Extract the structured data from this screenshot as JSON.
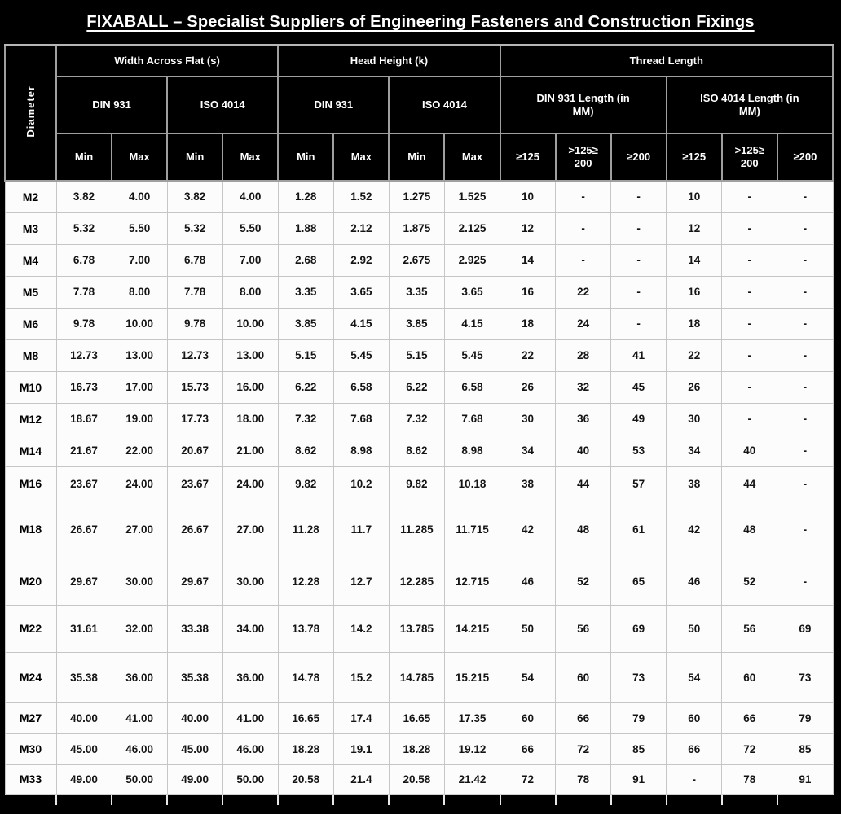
{
  "page": {
    "background_color": "#000000",
    "header_bg_color": "#000000",
    "header_text_color": "#ffffff",
    "cell_bg_color": "#fcfcfc",
    "cell_text_color": "#141414"
  },
  "title": "FIXABALL – Specialist Suppliers of Engineering Fasteners and Construction  Fixings",
  "table": {
    "diameter_label": "Diameter",
    "groups": [
      {
        "label": "Width Across Flat (s)"
      },
      {
        "label": "Head Height (k)"
      },
      {
        "label": "Thread Length"
      }
    ],
    "standards": [
      {
        "label": "DIN 931"
      },
      {
        "label": "ISO 4014"
      },
      {
        "label": "DIN 931"
      },
      {
        "label": "ISO 4014"
      },
      {
        "label": "DIN 931 Length (in\nMM)"
      },
      {
        "label": "ISO 4014 Length (in\nMM)"
      }
    ],
    "minmax_headers": [
      "Min",
      "Max",
      "Min",
      "Max",
      "Min",
      "Max",
      "Min",
      "Max"
    ],
    "length_headers": [
      "≥125",
      ">125≥\n200",
      "≥200",
      "≥125",
      ">125≥\n200",
      "≥200"
    ],
    "rows": [
      {
        "diameter": "M2",
        "values": [
          "3.82",
          "4.00",
          "3.82",
          "4.00",
          "1.28",
          "1.52",
          "1.275",
          "1.525",
          "10",
          "-",
          "-",
          "10",
          "-",
          "-"
        ]
      },
      {
        "diameter": "M3",
        "values": [
          "5.32",
          "5.50",
          "5.32",
          "5.50",
          "1.88",
          "2.12",
          "1.875",
          "2.125",
          "12",
          "-",
          "-",
          "12",
          "-",
          "-"
        ]
      },
      {
        "diameter": "M4",
        "values": [
          "6.78",
          "7.00",
          "6.78",
          "7.00",
          "2.68",
          "2.92",
          "2.675",
          "2.925",
          "14",
          "-",
          "-",
          "14",
          "-",
          "-"
        ]
      },
      {
        "diameter": "M5",
        "values": [
          "7.78",
          "8.00",
          "7.78",
          "8.00",
          "3.35",
          "3.65",
          "3.35",
          "3.65",
          "16",
          "22",
          "-",
          "16",
          "-",
          "-"
        ]
      },
      {
        "diameter": "M6",
        "values": [
          "9.78",
          "10.00",
          "9.78",
          "10.00",
          "3.85",
          "4.15",
          "3.85",
          "4.15",
          "18",
          "24",
          "-",
          "18",
          "-",
          "-"
        ]
      },
      {
        "diameter": "M8",
        "values": [
          "12.73",
          "13.00",
          "12.73",
          "13.00",
          "5.15",
          "5.45",
          "5.15",
          "5.45",
          "22",
          "28",
          "41",
          "22",
          "-",
          "-"
        ]
      },
      {
        "diameter": "M10",
        "values": [
          "16.73",
          "17.00",
          "15.73",
          "16.00",
          "6.22",
          "6.58",
          "6.22",
          "6.58",
          "26",
          "32",
          "45",
          "26",
          "-",
          "-"
        ]
      },
      {
        "diameter": "M12",
        "values": [
          "18.67",
          "19.00",
          "17.73",
          "18.00",
          "7.32",
          "7.68",
          "7.32",
          "7.68",
          "30",
          "36",
          "49",
          "30",
          "-",
          "-"
        ]
      },
      {
        "diameter": "M14",
        "values": [
          "21.67",
          "22.00",
          "20.67",
          "21.00",
          "8.62",
          "8.98",
          "8.62",
          "8.98",
          "34",
          "40",
          "53",
          "34",
          "40",
          "-"
        ]
      },
      {
        "diameter": "M16",
        "values": [
          "23.67",
          "24.00",
          "23.67",
          "24.00",
          "9.82",
          "10.2",
          "9.82",
          "10.18",
          "38",
          "44",
          "57",
          "38",
          "44",
          "-"
        ]
      },
      {
        "diameter": "M18",
        "values": [
          "26.67",
          "27.00",
          "26.67",
          "27.00",
          "11.28",
          "11.7",
          "11.285",
          "11.715",
          "42",
          "48",
          "61",
          "42",
          "48",
          "-"
        ]
      },
      {
        "diameter": "M20",
        "values": [
          "29.67",
          "30.00",
          "29.67",
          "30.00",
          "12.28",
          "12.7",
          "12.285",
          "12.715",
          "46",
          "52",
          "65",
          "46",
          "52",
          "-"
        ]
      },
      {
        "diameter": "M22",
        "values": [
          "31.61",
          "32.00",
          "33.38",
          "34.00",
          "13.78",
          "14.2",
          "13.785",
          "14.215",
          "50",
          "56",
          "69",
          "50",
          "56",
          "69"
        ]
      },
      {
        "diameter": "M24",
        "values": [
          "35.38",
          "36.00",
          "35.38",
          "36.00",
          "14.78",
          "15.2",
          "14.785",
          "15.215",
          "54",
          "60",
          "73",
          "54",
          "60",
          "73"
        ]
      },
      {
        "diameter": "M27",
        "values": [
          "40.00",
          "41.00",
          "40.00",
          "41.00",
          "16.65",
          "17.4",
          "16.65",
          "17.35",
          "60",
          "66",
          "79",
          "60",
          "66",
          "79"
        ]
      },
      {
        "diameter": "M30",
        "values": [
          "45.00",
          "46.00",
          "45.00",
          "46.00",
          "18.28",
          "19.1",
          "18.28",
          "19.12",
          "66",
          "72",
          "85",
          "66",
          "72",
          "85"
        ]
      },
      {
        "diameter": "M33",
        "values": [
          "49.00",
          "50.00",
          "49.00",
          "50.00",
          "20.58",
          "21.4",
          "20.58",
          "21.42",
          "72",
          "78",
          "91",
          "-",
          "78",
          "91"
        ]
      }
    ]
  }
}
